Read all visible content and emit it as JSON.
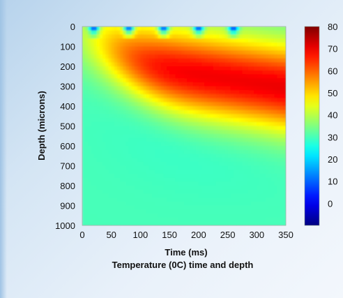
{
  "chart_data": {
    "type": "heatmap",
    "title": "Temperature (0C) time and depth",
    "xlabel": "Time (ms)",
    "ylabel": "Depth (microns)",
    "xlim": [
      0,
      350
    ],
    "ylim": [
      0,
      1000
    ],
    "y_inverted": true,
    "x_ticks": [
      0,
      50,
      100,
      150,
      200,
      250,
      300,
      350
    ],
    "y_ticks": [
      0,
      100,
      200,
      300,
      400,
      500,
      600,
      700,
      800,
      900,
      1000
    ],
    "colorbar": {
      "range": [
        -10,
        80
      ],
      "ticks": [
        80,
        70,
        60,
        50,
        40,
        30,
        20,
        10,
        0
      ],
      "colormap": "jet"
    },
    "pulse_times_ms": [
      20,
      80,
      140,
      200,
      260
    ],
    "surface_low_temp": -5,
    "background_temp": 30,
    "peak_temp": 72,
    "peak_region": {
      "time_ms": [
        200,
        350
      ],
      "depth_microns": [
        100,
        400
      ]
    },
    "grid": false,
    "legend": "right"
  },
  "colors": {
    "panel_background": "#d4e5f4",
    "text": "#111111"
  }
}
